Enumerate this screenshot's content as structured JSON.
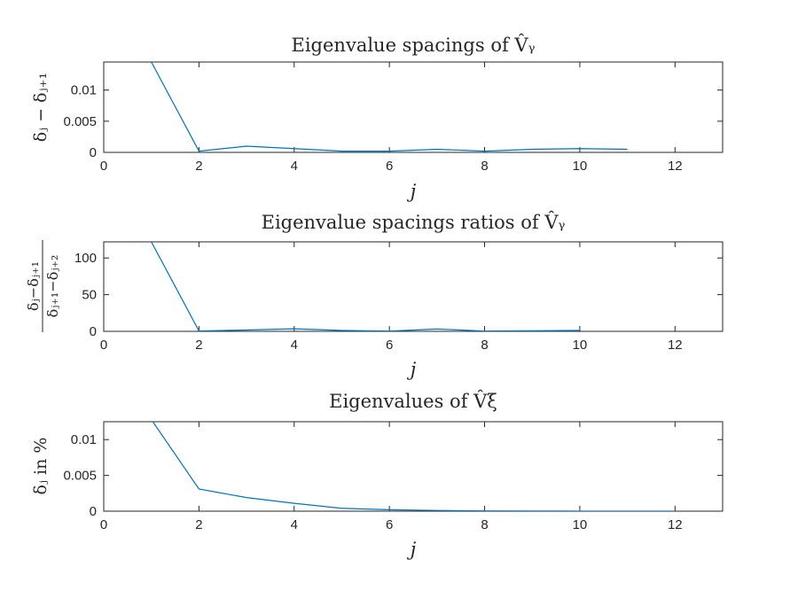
{
  "chart_data": [
    {
      "type": "line",
      "title": "Eigenvalue spacings of V̂ᵧ",
      "xlabel": "j",
      "ylabel": "δⱼ − δⱼ₊₁",
      "xlim": [
        0,
        13
      ],
      "ylim": [
        0,
        0.0145
      ],
      "xticks": [
        "0",
        "2",
        "4",
        "6",
        "8",
        "10",
        "12"
      ],
      "yticks": [
        "0",
        "0.005",
        "0.01"
      ],
      "grid": false,
      "series": [
        {
          "color": "#0072BD",
          "x": [
            1,
            2,
            3,
            4,
            5,
            6,
            7,
            8,
            9,
            10,
            11
          ],
          "y": [
            0.0145,
            0.0002,
            0.001,
            0.0006,
            0.0002,
            0.0002,
            0.0005,
            0.0002,
            0.0005,
            0.0006,
            0.0005
          ]
        }
      ]
    },
    {
      "type": "line",
      "title": "Eigenvalue spacings ratios of V̂ᵧ",
      "xlabel": "j",
      "ylabel_num": "δⱼ−δⱼ₊₁",
      "ylabel_den": "δⱼ₊₁−δⱼ₊₂",
      "xlim": [
        0,
        13
      ],
      "ylim": [
        0,
        122
      ],
      "xticks": [
        "0",
        "2",
        "4",
        "6",
        "8",
        "10",
        "12"
      ],
      "yticks": [
        "0",
        "50",
        "100"
      ],
      "grid": false,
      "series": [
        {
          "color": "#0072BD",
          "x": [
            1,
            2,
            3,
            4,
            5,
            6,
            7,
            8,
            9,
            10
          ],
          "y": [
            122,
            0.5,
            1.8,
            3.5,
            1.2,
            0.3,
            3.2,
            0.3,
            0.8,
            1.2
          ]
        }
      ]
    },
    {
      "type": "line",
      "title": "Eigenvalues of V̂ξ",
      "xlabel": "j",
      "ylabel": "δⱼ in %",
      "xlim": [
        0,
        13
      ],
      "ylim": [
        0,
        0.0125
      ],
      "xticks": [
        "0",
        "2",
        "4",
        "6",
        "8",
        "10",
        "12"
      ],
      "yticks": [
        "0",
        "0.005",
        "0.01"
      ],
      "grid": false,
      "series": [
        {
          "color": "#0072BD",
          "x": [
            1,
            2,
            3,
            4,
            5,
            6,
            7,
            8,
            9,
            10,
            11,
            12
          ],
          "y": [
            0.0128,
            0.0031,
            0.0019,
            0.0011,
            0.0004,
            0.0002,
            0.0001,
            3e-05,
            2e-05,
            1e-05,
            1e-05,
            1e-05
          ]
        }
      ]
    }
  ]
}
